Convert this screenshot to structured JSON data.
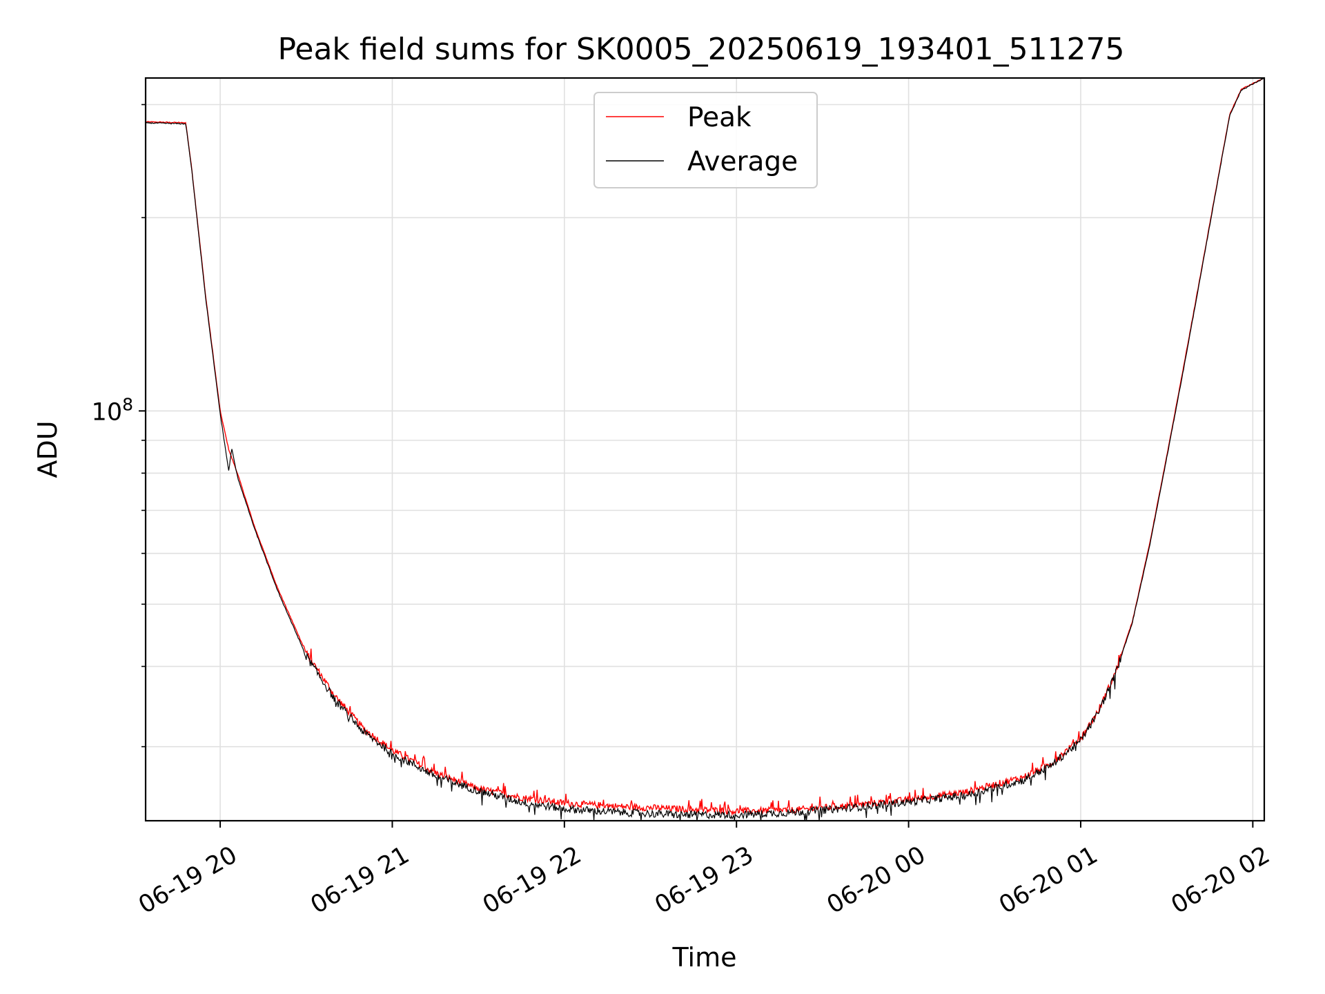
{
  "chart_data": {
    "type": "line",
    "title": "Peak field sums for SK0005_20250619_193401_511275",
    "xlabel": "Time",
    "ylabel": "ADU",
    "yscale": "log",
    "grid": true,
    "legend_position": "top-center",
    "xlim": [
      "2025-06-19 19:34",
      "2025-06-20 02:04"
    ],
    "ylim": [
      23000000,
      330000000
    ],
    "x_ticks": [
      "06-19 20",
      "06-19 21",
      "06-19 22",
      "06-19 23",
      "06-20 00",
      "06-20 01",
      "06-20 02"
    ],
    "x_tick_values": [
      "2025-06-19 20:00",
      "2025-06-19 21:00",
      "2025-06-19 22:00",
      "2025-06-19 23:00",
      "2025-06-20 00:00",
      "2025-06-20 01:00",
      "2025-06-20 02:00"
    ],
    "y_major_tick_labels": [
      {
        "base": "10",
        "exp": "8",
        "value": 100000000
      }
    ],
    "y_minor_tick_values": [
      30000000,
      40000000,
      50000000,
      60000000,
      70000000,
      80000000,
      90000000,
      200000000,
      300000000
    ],
    "series": [
      {
        "name": "Peak",
        "color": "#ff0000",
        "noise": 0.012,
        "points": [
          [
            "2025-06-19 19:34",
            282000000
          ],
          [
            "2025-06-19 19:48",
            281000000
          ],
          [
            "2025-06-19 19:50",
            240000000
          ],
          [
            "2025-06-19 19:55",
            150000000
          ],
          [
            "2025-06-19 20:00",
            100000000
          ],
          [
            "2025-06-19 20:03",
            87000000
          ],
          [
            "2025-06-19 20:06",
            80000000
          ],
          [
            "2025-06-19 20:12",
            66000000
          ],
          [
            "2025-06-19 20:20",
            53000000
          ],
          [
            "2025-06-19 20:30",
            42000000
          ],
          [
            "2025-06-19 20:40",
            36000000
          ],
          [
            "2025-06-19 20:50",
            32000000
          ],
          [
            "2025-06-19 21:00",
            29600000
          ],
          [
            "2025-06-19 21:15",
            27300000
          ],
          [
            "2025-06-19 21:30",
            25800000
          ],
          [
            "2025-06-19 21:45",
            25000000
          ],
          [
            "2025-06-19 22:00",
            24500000
          ],
          [
            "2025-06-19 22:20",
            24200000
          ],
          [
            "2025-06-19 22:40",
            24000000
          ],
          [
            "2025-06-19 23:00",
            23800000
          ],
          [
            "2025-06-19 23:20",
            23900000
          ],
          [
            "2025-06-19 23:40",
            24300000
          ],
          [
            "2025-06-20 00:00",
            24800000
          ],
          [
            "2025-06-20 00:20",
            25500000
          ],
          [
            "2025-06-20 00:40",
            26900000
          ],
          [
            "2025-06-20 00:50",
            28300000
          ],
          [
            "2025-06-20 01:00",
            30900000
          ],
          [
            "2025-06-20 01:06",
            34000000
          ],
          [
            "2025-06-20 01:12",
            39000000
          ],
          [
            "2025-06-20 01:18",
            47000000
          ],
          [
            "2025-06-20 01:24",
            62000000
          ],
          [
            "2025-06-20 01:30",
            85000000
          ],
          [
            "2025-06-20 01:36",
            118000000
          ],
          [
            "2025-06-20 01:42",
            165000000
          ],
          [
            "2025-06-20 01:48",
            232000000
          ],
          [
            "2025-06-20 01:52",
            290000000
          ],
          [
            "2025-06-20 01:56",
            317000000
          ],
          [
            "2025-06-20 02:04",
            330000000
          ]
        ]
      },
      {
        "name": "Average",
        "color": "#000000",
        "noise": 0.014,
        "points": [
          [
            "2025-06-19 19:34",
            281000000
          ],
          [
            "2025-06-19 19:48",
            280000000
          ],
          [
            "2025-06-19 19:50",
            239000000
          ],
          [
            "2025-06-19 19:55",
            149000000
          ],
          [
            "2025-06-19 20:00",
            99000000
          ],
          [
            "2025-06-19 20:03",
            80500000
          ],
          [
            "2025-06-19 20:04",
            87500000
          ],
          [
            "2025-06-19 20:06",
            79000000
          ],
          [
            "2025-06-19 20:12",
            65500000
          ],
          [
            "2025-06-19 20:20",
            52500000
          ],
          [
            "2025-06-19 20:30",
            41500000
          ],
          [
            "2025-06-19 20:40",
            35500000
          ],
          [
            "2025-06-19 20:50",
            31600000
          ],
          [
            "2025-06-19 21:00",
            29300000
          ],
          [
            "2025-06-19 21:15",
            27000000
          ],
          [
            "2025-06-19 21:30",
            25600000
          ],
          [
            "2025-06-19 21:45",
            24600000
          ],
          [
            "2025-06-19 22:00",
            24000000
          ],
          [
            "2025-06-19 22:20",
            23700000
          ],
          [
            "2025-06-19 22:40",
            23500000
          ],
          [
            "2025-06-19 23:00",
            23500000
          ],
          [
            "2025-06-19 23:20",
            23700000
          ],
          [
            "2025-06-19 23:40",
            24100000
          ],
          [
            "2025-06-20 00:00",
            24600000
          ],
          [
            "2025-06-20 00:20",
            25200000
          ],
          [
            "2025-06-20 00:40",
            26600000
          ],
          [
            "2025-06-20 00:50",
            28100000
          ],
          [
            "2025-06-20 01:00",
            30700000
          ],
          [
            "2025-06-20 01:06",
            33800000
          ],
          [
            "2025-06-20 01:12",
            38800000
          ],
          [
            "2025-06-20 01:18",
            46800000
          ],
          [
            "2025-06-20 01:24",
            61500000
          ],
          [
            "2025-06-20 01:30",
            84500000
          ],
          [
            "2025-06-20 01:36",
            117000000
          ],
          [
            "2025-06-20 01:42",
            164000000
          ],
          [
            "2025-06-20 01:48",
            231000000
          ],
          [
            "2025-06-20 01:52",
            289000000
          ],
          [
            "2025-06-20 01:56",
            316000000
          ],
          [
            "2025-06-20 02:04",
            330000000
          ]
        ]
      }
    ]
  }
}
